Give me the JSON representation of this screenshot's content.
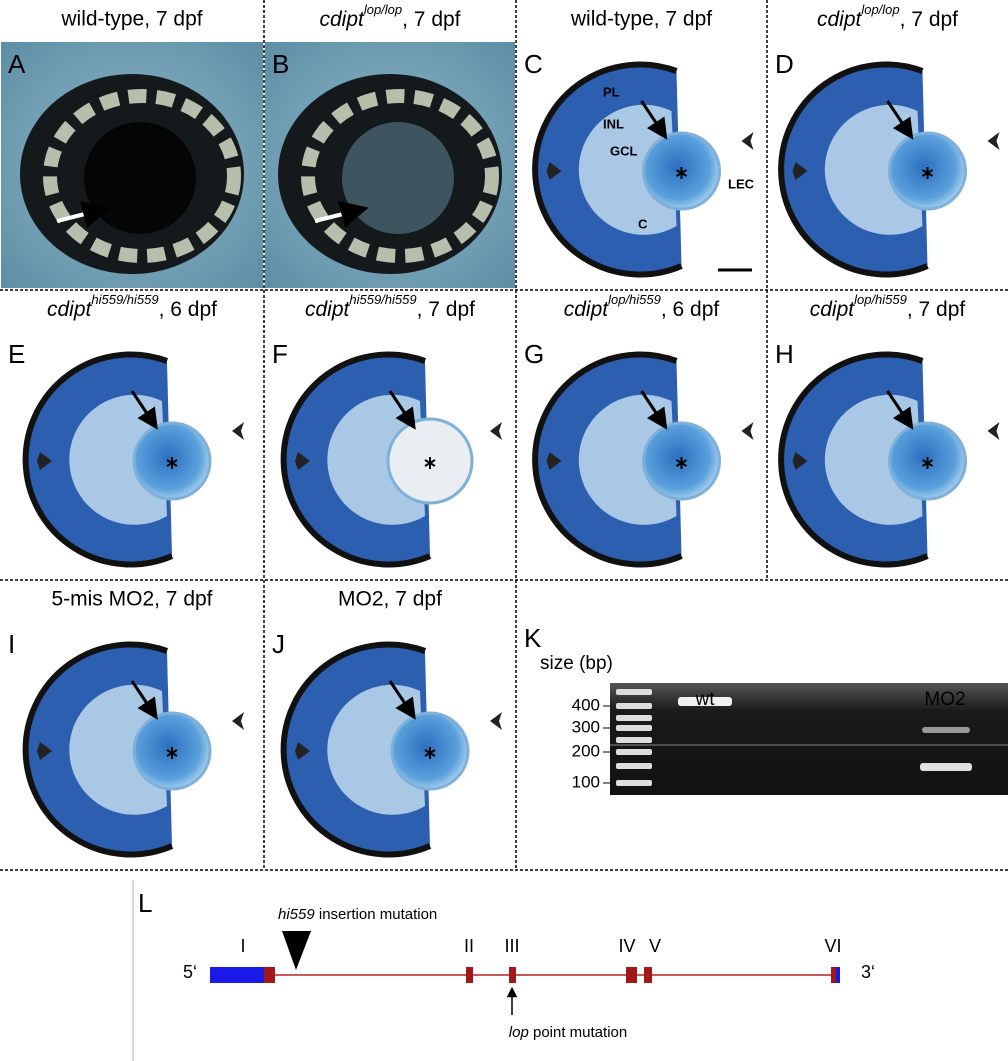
{
  "panels": [
    {
      "letter": "A",
      "title": "wild-type, 7 dpf"
    },
    {
      "letter": "B",
      "title": {
        "gene": "cdipt",
        "superscript": "lop/lop",
        "suffix": ", 7 dpf"
      }
    },
    {
      "letter": "C",
      "title": "wild-type, 7 dpf",
      "labels": [
        "PL",
        "INL",
        "GCL",
        "LEC",
        "C"
      ]
    },
    {
      "letter": "D",
      "title": {
        "gene": "cdipt",
        "superscript": "lop/lop",
        "suffix": ", 7 dpf"
      }
    },
    {
      "letter": "E",
      "title": {
        "gene": "cdipt",
        "superscript": "hi559/hi559",
        "suffix": ", 6 dpf"
      }
    },
    {
      "letter": "F",
      "title": {
        "gene": "cdipt",
        "superscript": "hi559/hi559",
        "suffix": ", 7 dpf"
      }
    },
    {
      "letter": "G",
      "title": {
        "gene": "cdipt",
        "superscript": "lop/hi559",
        "suffix": ", 6 dpf"
      }
    },
    {
      "letter": "H",
      "title": {
        "gene": "cdipt",
        "superscript": "lop/hi559",
        "suffix": ", 7 dpf"
      }
    },
    {
      "letter": "I",
      "title": "5-mis MO2, 7 dpf"
    },
    {
      "letter": "J",
      "title": "MO2, 7 dpf"
    }
  ],
  "gel": {
    "letter": "K",
    "size_label": "size (bp)",
    "ladder": [
      400,
      300,
      200,
      100
    ],
    "lanes": [
      "wt",
      "MO2"
    ]
  },
  "gene_diagram": {
    "letter": "L",
    "insertion": {
      "allele": "hi559",
      "text": " insertion mutation"
    },
    "exons": [
      "I",
      "II",
      "III",
      "IV",
      "V",
      "VI"
    ],
    "five_prime": "5‘",
    "three_prime": "3‘",
    "point": {
      "allele": "lop",
      "text": " point mutation"
    }
  }
}
